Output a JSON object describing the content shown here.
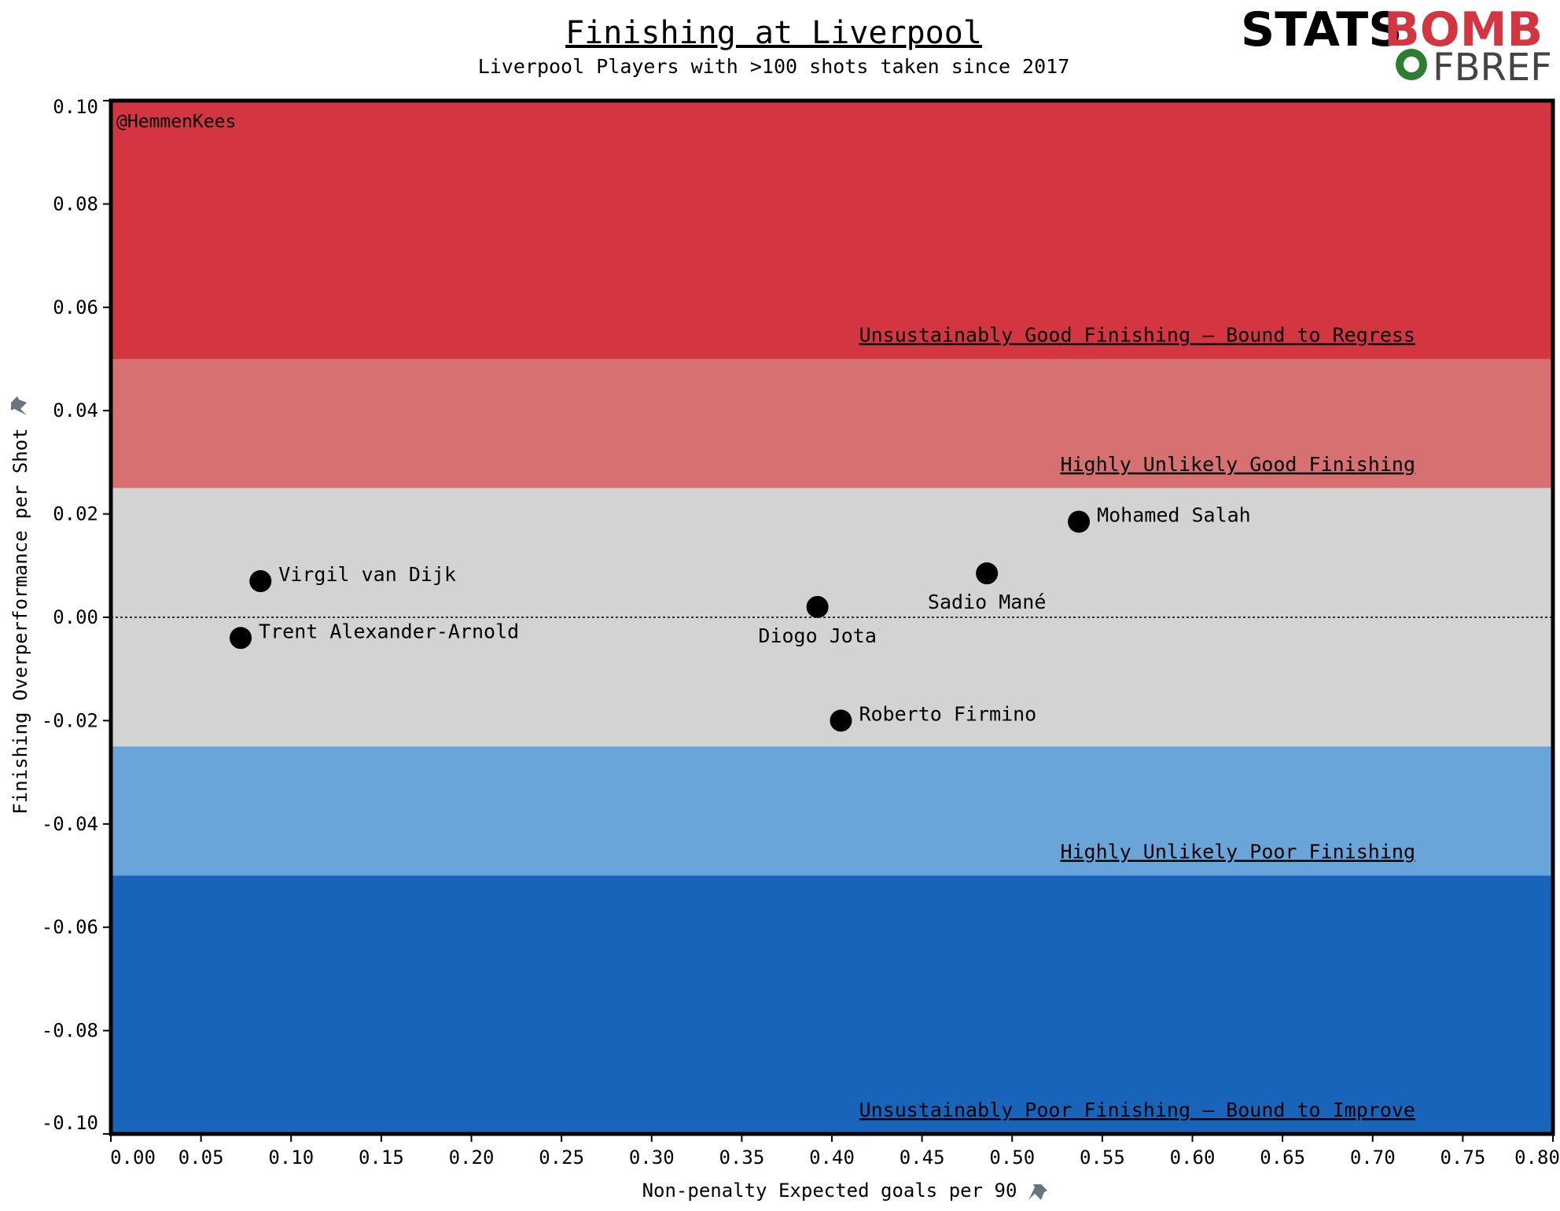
{
  "chart_data": {
    "type": "scatter",
    "title": "Finishing at Liverpool",
    "subtitle": "Liverpool Players with >100 shots taken since 2017",
    "xlabel": "Non-penalty Expected goals per 90",
    "ylabel": "Finishing Overperformance per Shot",
    "xlim": [
      0.0,
      0.8
    ],
    "ylim": [
      -0.1,
      0.1
    ],
    "x_ticks": [
      "0.00",
      "0.05",
      "0.10",
      "0.15",
      "0.20",
      "0.25",
      "0.30",
      "0.35",
      "0.40",
      "0.45",
      "0.50",
      "0.55",
      "0.60",
      "0.65",
      "0.70",
      "0.75",
      "0.80"
    ],
    "y_ticks": [
      "0.10",
      "0.08",
      "0.06",
      "0.04",
      "0.02",
      "0.00",
      "-0.02",
      "-0.04",
      "-0.06",
      "-0.08",
      "-0.10"
    ],
    "reference_line_y": 0.0,
    "bands": [
      {
        "from": 0.05,
        "to": 0.1,
        "color": "#d33640",
        "label": "Unsustainably Good Finishing – Bound to Regress"
      },
      {
        "from": 0.025,
        "to": 0.05,
        "color": "#d77171",
        "label": "Highly Unlikely Good Finishing"
      },
      {
        "from": -0.025,
        "to": 0.025,
        "color": "#d3d3d3",
        "label": ""
      },
      {
        "from": -0.05,
        "to": -0.025,
        "color": "#69a5d8",
        "label": "Highly Unlikely Poor Finishing"
      },
      {
        "from": -0.1,
        "to": -0.05,
        "color": "#1864bb",
        "label": "Unsustainably Poor Finishing – Bound to Improve"
      }
    ],
    "points": [
      {
        "name": "Virgil van Dijk",
        "x": 0.083,
        "y": 0.007,
        "label_pos": "right"
      },
      {
        "name": "Trent Alexander-Arnold",
        "x": 0.072,
        "y": -0.004,
        "label_pos": "right"
      },
      {
        "name": "Diogo Jota",
        "x": 0.392,
        "y": 0.002,
        "label_pos": "below"
      },
      {
        "name": "Roberto Firmino",
        "x": 0.405,
        "y": -0.02,
        "label_pos": "right"
      },
      {
        "name": "Sadio Mané",
        "x": 0.486,
        "y": 0.0085,
        "label_pos": "below"
      },
      {
        "name": "Mohamed Salah",
        "x": 0.537,
        "y": 0.0185,
        "label_pos": "right"
      }
    ],
    "grid": false,
    "legend": "none"
  },
  "handle": "@HemmenKees",
  "logo": {
    "stats_text": "STATS",
    "bomb_text": "BOMB",
    "fbref_text": "FBREF"
  },
  "pin_icon": "pin-icon"
}
